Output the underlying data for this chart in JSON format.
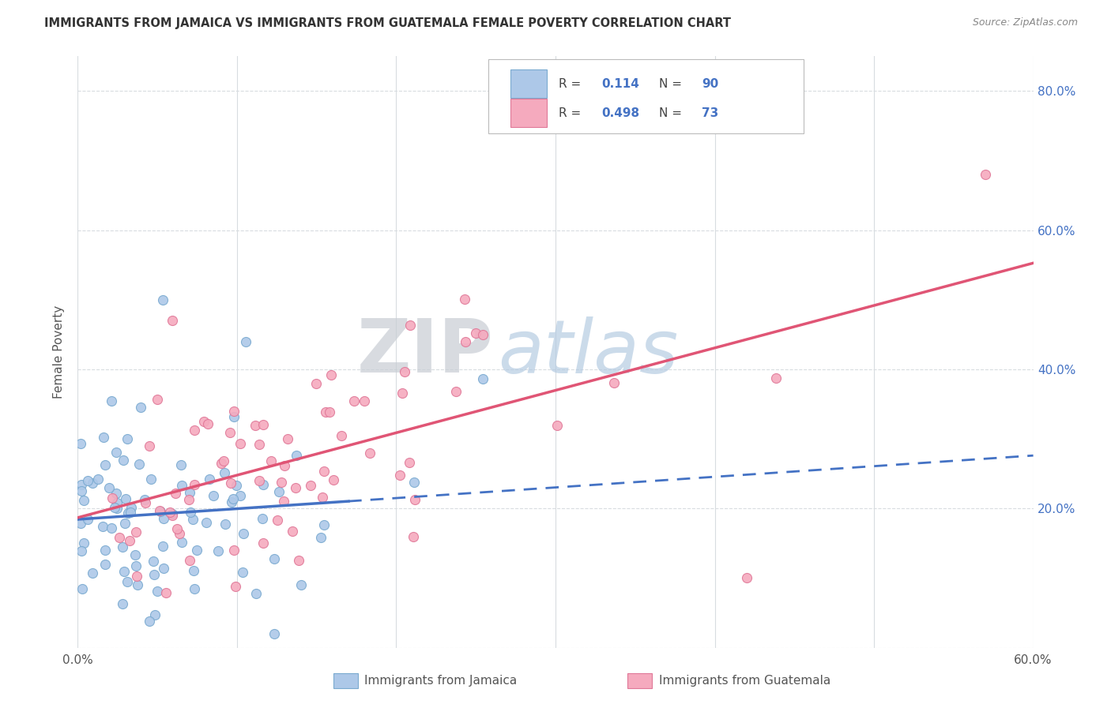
{
  "title": "IMMIGRANTS FROM JAMAICA VS IMMIGRANTS FROM GUATEMALA FEMALE POVERTY CORRELATION CHART",
  "source": "Source: ZipAtlas.com",
  "ylabel": "Female Poverty",
  "x_min": 0.0,
  "x_max": 0.6,
  "y_min": 0.0,
  "y_max": 0.85,
  "x_tick_positions": [
    0.0,
    0.1,
    0.2,
    0.3,
    0.4,
    0.5,
    0.6
  ],
  "x_tick_labels": [
    "0.0%",
    "",
    "",
    "",
    "",
    "",
    "60.0%"
  ],
  "y_tick_positions": [
    0.0,
    0.2,
    0.4,
    0.6,
    0.8
  ],
  "y_tick_labels_right": [
    "",
    "20.0%",
    "40.0%",
    "60.0%",
    "80.0%"
  ],
  "jamaica_fill": "#adc8e8",
  "jamaica_edge": "#7aaad0",
  "guatemala_fill": "#f5aabe",
  "guatemala_edge": "#e07898",
  "trend_jamaica_solid_color": "#4472c4",
  "trend_jamaica_dash_color": "#4472c4",
  "trend_guatemala_color": "#e05575",
  "R_jamaica": "0.114",
  "N_jamaica": "90",
  "R_guatemala": "0.498",
  "N_guatemala": "73",
  "legend_label_jamaica": "Immigrants from Jamaica",
  "legend_label_guatemala": "Immigrants from Guatemala",
  "watermark_zip": "ZIP",
  "watermark_atlas": "atlas",
  "watermark_zip_color": "#c8cdd4",
  "watermark_atlas_color": "#b0c8e0",
  "background_color": "#ffffff",
  "grid_color": "#d8dce0",
  "right_tick_color": "#4472c4",
  "title_color": "#333333",
  "source_color": "#888888",
  "label_color": "#555555"
}
